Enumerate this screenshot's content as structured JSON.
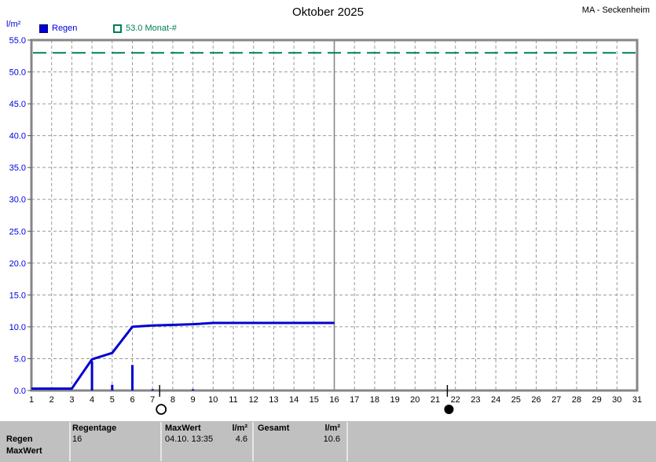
{
  "header": {
    "title": "Oktober 2025",
    "station": "MA - Seckenheim",
    "axis_unit": "l/m²"
  },
  "legend": {
    "items": [
      {
        "label": "Regen",
        "color": "#0000d9",
        "swatch": "filled-square"
      },
      {
        "label": "53.0 Monat-#",
        "color": "#008055",
        "swatch": "outline-square"
      }
    ]
  },
  "colors": {
    "series_blue": "#0000d0",
    "axis_label_blue": "#0000d9",
    "monat_green": "#008055",
    "grid_gray": "#9a9a9a",
    "border_gray": "#868686",
    "footer_bg": "#c0c0c0",
    "text_black": "#000000"
  },
  "chart_data": {
    "type": "line+bar",
    "title": "Oktober 2025",
    "ylabel": "l/m²",
    "xlabel": "",
    "ylim": [
      0,
      55
    ],
    "xlim": [
      1,
      31
    ],
    "grid": true,
    "y_ticks": [
      0,
      5,
      10,
      15,
      20,
      25,
      30,
      35,
      40,
      45,
      50,
      55
    ],
    "y_tick_labels": [
      "0.0",
      "5.0",
      "10.0",
      "15.0",
      "20.0",
      "25.0",
      "30.0",
      "35.0",
      "40.0",
      "45.0",
      "50.0",
      "55.0"
    ],
    "x_ticks": [
      1,
      2,
      3,
      4,
      5,
      6,
      7,
      8,
      9,
      10,
      11,
      12,
      13,
      14,
      15,
      16,
      17,
      18,
      19,
      20,
      21,
      22,
      23,
      24,
      25,
      26,
      27,
      28,
      29,
      30,
      31
    ],
    "reference_line": {
      "value": 53.0,
      "label": "53.0 Monat-#",
      "style": "dashed"
    },
    "current_day_line": 16,
    "series": [
      {
        "name": "Regen (Summe)",
        "kind": "line",
        "x": [
          1,
          2,
          3,
          4,
          5,
          6,
          7,
          8,
          9,
          10,
          11,
          12,
          13,
          14,
          15,
          16
        ],
        "y": [
          0.3,
          0.3,
          0.3,
          4.9,
          5.9,
          10.0,
          10.2,
          10.3,
          10.4,
          10.6,
          10.6,
          10.6,
          10.6,
          10.6,
          10.6,
          10.6
        ]
      },
      {
        "name": "Regen (Tageswerte)",
        "kind": "bar",
        "points": [
          {
            "day": 4,
            "value": 4.6
          },
          {
            "day": 5,
            "value": 0.9
          },
          {
            "day": 6,
            "value": 4.0
          },
          {
            "day": 7,
            "value": 0.2
          },
          {
            "day": 9,
            "value": 0.2
          }
        ]
      }
    ],
    "moon_markers": [
      {
        "day": 7.35,
        "phase": "full-moon",
        "symbol": "open-circle"
      },
      {
        "day": 21.6,
        "phase": "new-moon",
        "symbol": "filled-circle"
      }
    ]
  },
  "footer": {
    "row_labels": [
      "Regen",
      "MaxWert"
    ],
    "regentage": {
      "header": "Regentage",
      "value": "16"
    },
    "maxwert": {
      "header": "MaxWert",
      "unit": "l/m²",
      "datetime": "04.10.  13:35",
      "value": "4.6"
    },
    "gesamt": {
      "header": "Gesamt",
      "unit": "l/m²",
      "value": "10.6"
    }
  }
}
